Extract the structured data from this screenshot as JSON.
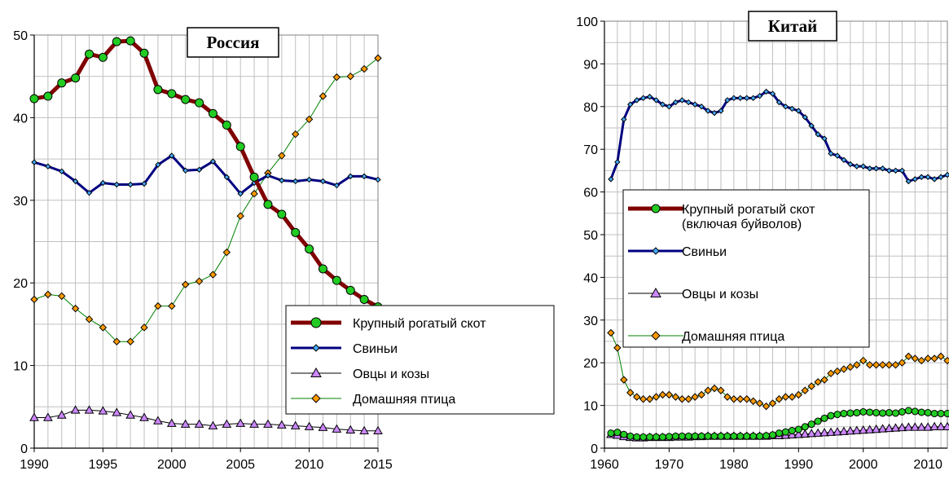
{
  "chart_data": [
    {
      "type": "line",
      "title": "Россия",
      "xlabel": "",
      "ylabel": "",
      "xlim": [
        1990,
        2015
      ],
      "ylim": [
        0,
        50
      ],
      "xticks": [
        1990,
        1995,
        2000,
        2005,
        2010,
        2015
      ],
      "yticks": [
        0,
        10,
        20,
        30,
        40,
        50
      ],
      "grid": true,
      "legend_position": "bottom-right",
      "x": [
        1990,
        1991,
        1992,
        1993,
        1994,
        1995,
        1996,
        1997,
        1998,
        1999,
        2000,
        2001,
        2002,
        2003,
        2004,
        2005,
        2006,
        2007,
        2008,
        2009,
        2010,
        2011,
        2012,
        2013,
        2014,
        2015
      ],
      "series": [
        {
          "name": "Крупный рогатый скот",
          "color": "#800000",
          "marker_color": "#22cc22",
          "marker": "circle",
          "width": 5,
          "values": [
            42.3,
            42.6,
            44.2,
            44.8,
            47.7,
            47.3,
            49.2,
            49.3,
            47.8,
            43.4,
            42.9,
            42.2,
            41.8,
            40.5,
            39.1,
            36.5,
            32.8,
            29.5,
            28.3,
            26.1,
            24.1,
            21.7,
            20.3,
            19.1,
            18.0,
            17.1
          ]
        },
        {
          "name": "Свиньи",
          "color": "#000080",
          "marker_color": "#44aaff",
          "marker": "diamond",
          "width": 3,
          "values": [
            34.6,
            34.1,
            33.5,
            32.3,
            30.9,
            32.1,
            31.9,
            31.9,
            32.0,
            34.3,
            35.4,
            33.6,
            33.7,
            34.7,
            32.8,
            30.8,
            32.1,
            33.0,
            32.4,
            32.3,
            32.5,
            32.3,
            31.8,
            32.9,
            32.9,
            32.5
          ]
        },
        {
          "name": "Овцы и козы",
          "color": "#000000",
          "marker_color": "#cc88ff",
          "marker": "triangle",
          "width": 1,
          "values": [
            3.7,
            3.7,
            4.0,
            4.6,
            4.6,
            4.5,
            4.3,
            4.0,
            3.7,
            3.3,
            3.0,
            2.9,
            2.9,
            2.7,
            2.9,
            3.0,
            2.9,
            2.9,
            2.8,
            2.7,
            2.6,
            2.5,
            2.3,
            2.2,
            2.1,
            2.1
          ]
        },
        {
          "name": "Домашняя птица",
          "color": "#008000",
          "marker_color": "#ff9900",
          "marker": "square-diamond",
          "width": 1,
          "values": [
            18.0,
            18.6,
            18.4,
            16.9,
            15.6,
            14.6,
            12.9,
            12.9,
            14.6,
            17.2,
            17.2,
            19.8,
            20.2,
            21.0,
            23.7,
            28.1,
            30.8,
            33.3,
            35.4,
            38.0,
            39.8,
            42.6,
            44.9,
            45.0,
            45.9,
            47.2
          ]
        }
      ]
    },
    {
      "type": "line",
      "title": "Китай",
      "xlabel": "",
      "ylabel": "",
      "xlim": [
        1960,
        2013
      ],
      "ylim": [
        0,
        100
      ],
      "xticks": [
        1960,
        1970,
        1980,
        1990,
        2000,
        2010
      ],
      "yticks": [
        0,
        10,
        20,
        30,
        40,
        50,
        60,
        70,
        80,
        90,
        100
      ],
      "grid": true,
      "legend_position": "middle-left",
      "x": [
        1961,
        1962,
        1963,
        1964,
        1965,
        1966,
        1967,
        1968,
        1969,
        1970,
        1971,
        1972,
        1973,
        1974,
        1975,
        1976,
        1977,
        1978,
        1979,
        1980,
        1981,
        1982,
        1983,
        1984,
        1985,
        1986,
        1987,
        1988,
        1989,
        1990,
        1991,
        1992,
        1993,
        1994,
        1995,
        1996,
        1997,
        1998,
        1999,
        2000,
        2001,
        2002,
        2003,
        2004,
        2005,
        2006,
        2007,
        2008,
        2009,
        2010,
        2011,
        2012,
        2013
      ],
      "series": [
        {
          "name": "Крупный рогатый скот (включая буйволов)",
          "legend_lines": [
            "Крупный рогатый скот",
            "(включая буйволов)"
          ],
          "color": "#800000",
          "marker_color": "#22cc22",
          "marker": "circle",
          "width": 5,
          "values": [
            3.5,
            3.7,
            3.2,
            2.8,
            2.6,
            2.6,
            2.6,
            2.6,
            2.6,
            2.7,
            2.8,
            2.8,
            2.8,
            2.8,
            2.8,
            2.8,
            2.8,
            2.8,
            2.8,
            2.8,
            2.8,
            2.8,
            2.8,
            2.8,
            2.9,
            3.1,
            3.5,
            3.8,
            4.1,
            4.4,
            5.0,
            5.6,
            6.3,
            7.0,
            7.6,
            7.9,
            8.1,
            8.2,
            8.3,
            8.5,
            8.4,
            8.3,
            8.2,
            8.3,
            8.2,
            8.5,
            8.8,
            8.6,
            8.4,
            8.3,
            8.1,
            8.1,
            8.1
          ]
        },
        {
          "name": "Свиньи",
          "color": "#000080",
          "marker_color": "#44aaff",
          "marker": "diamond",
          "width": 3,
          "values": [
            63.0,
            67.0,
            77.0,
            80.5,
            81.5,
            82.0,
            82.3,
            81.5,
            80.5,
            80.0,
            81.0,
            81.5,
            81.0,
            80.5,
            80.0,
            79.0,
            78.5,
            79.0,
            81.5,
            82.0,
            82.0,
            82.0,
            82.0,
            82.5,
            83.5,
            83.0,
            81.0,
            80.0,
            79.5,
            79.0,
            77.5,
            75.5,
            73.5,
            72.5,
            69.0,
            68.5,
            67.5,
            66.5,
            66.0,
            66.0,
            65.5,
            65.5,
            65.5,
            65.0,
            65.0,
            65.0,
            62.5,
            63.0,
            63.5,
            63.5,
            63.0,
            63.5,
            64.0
          ]
        },
        {
          "name": "Овцы и козы",
          "color": "#000000",
          "marker_color": "#cc88ff",
          "marker": "triangle",
          "width": 1,
          "values": [
            3.2,
            3.0,
            2.7,
            2.5,
            2.4,
            2.4,
            2.5,
            2.5,
            2.5,
            2.5,
            2.6,
            2.6,
            2.6,
            2.7,
            2.7,
            2.8,
            2.8,
            2.8,
            2.8,
            2.8,
            2.8,
            2.8,
            2.8,
            2.8,
            2.8,
            2.9,
            2.9,
            3.0,
            3.1,
            3.2,
            3.3,
            3.4,
            3.5,
            3.6,
            3.7,
            3.8,
            3.9,
            4.0,
            4.1,
            4.2,
            4.3,
            4.4,
            4.5,
            4.6,
            4.7,
            4.8,
            4.9,
            4.9,
            4.9,
            4.9,
            5.0,
            5.0,
            5.0
          ]
        },
        {
          "name": "Домашняя птица",
          "color": "#008000",
          "marker_color": "#ff9900",
          "marker": "square-diamond",
          "width": 1,
          "values": [
            27.0,
            23.5,
            16.0,
            13.0,
            12.0,
            11.5,
            11.5,
            12.0,
            12.5,
            12.5,
            12.0,
            11.5,
            11.5,
            12.0,
            12.5,
            13.5,
            14.0,
            13.5,
            12.0,
            11.5,
            11.5,
            11.5,
            11.0,
            10.5,
            9.8,
            10.5,
            11.5,
            12.0,
            12.0,
            12.5,
            13.5,
            14.5,
            15.5,
            16.0,
            17.5,
            18.0,
            18.5,
            19.0,
            19.5,
            20.5,
            19.5,
            19.5,
            19.5,
            19.5,
            19.5,
            20.0,
            21.5,
            21.0,
            20.5,
            21.0,
            21.0,
            21.5,
            20.5
          ]
        }
      ]
    }
  ]
}
